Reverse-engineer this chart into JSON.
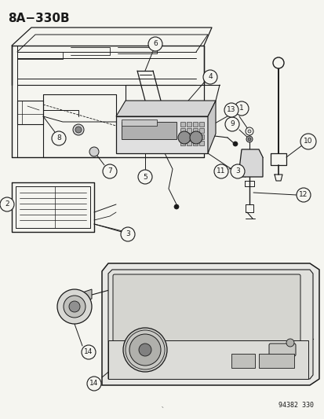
{
  "title": "8A−330B",
  "catalog_number": "94382 330",
  "bg": "#f5f5f0",
  "lc": "#1a1a1a",
  "fig_w": 4.14,
  "fig_h": 5.33,
  "dpi": 100
}
